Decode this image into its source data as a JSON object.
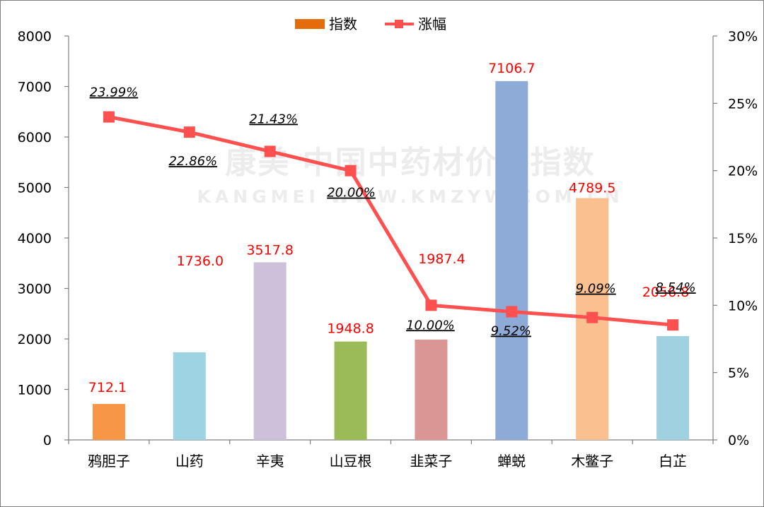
{
  "legend": {
    "bar_label": "指数",
    "line_label": "涨幅"
  },
  "watermark": {
    "main": "康美 中国中药材价格指数",
    "sub": "KANGMEI WWW.KMZYW.COM.CN"
  },
  "colors": {
    "line": "#ff5050",
    "bar_label": "#ff0000",
    "axis": "#7f7f7f"
  },
  "chart_data": {
    "type": "bar",
    "categories": [
      "鸦胆子",
      "山药",
      "辛夷",
      "山豆根",
      "韭菜子",
      "蝉蜕",
      "木鳖子",
      "白芷"
    ],
    "series": [
      {
        "name": "指数",
        "type": "bar",
        "axis": "left",
        "values": [
          712.1,
          1736.0,
          3517.8,
          1948.8,
          1987.4,
          7106.7,
          4789.5,
          2056.8
        ],
        "labels": [
          "712.1",
          "1736.0",
          "3517.8",
          "1948.8",
          "1987.4",
          "7106.7",
          "4789.5",
          "2056.8"
        ],
        "colors": [
          "#f79646",
          "#9dd3e3",
          "#ccc0da",
          "#9bbb59",
          "#d99694",
          "#8eaad6",
          "#fac08f",
          "#9fd1e1"
        ]
      },
      {
        "name": "涨幅",
        "type": "line",
        "axis": "right",
        "values": [
          23.99,
          22.86,
          21.43,
          20.0,
          10.0,
          9.52,
          9.09,
          8.54
        ],
        "labels": [
          "23.99%",
          "22.86%",
          "21.43%",
          "20.00%",
          "10.00%",
          "9.52%",
          "9.09%",
          "8.54%"
        ]
      }
    ],
    "y_left": {
      "min": 0,
      "max": 8000,
      "ticks": [
        "0",
        "1000",
        "2000",
        "3000",
        "4000",
        "5000",
        "6000",
        "7000",
        "8000"
      ]
    },
    "y_right": {
      "min": 0,
      "max": 30,
      "ticks": [
        "0%",
        "5%",
        "10%",
        "15%",
        "20%",
        "25%",
        "30%"
      ]
    },
    "grid": false,
    "legend_position": "top-center"
  }
}
